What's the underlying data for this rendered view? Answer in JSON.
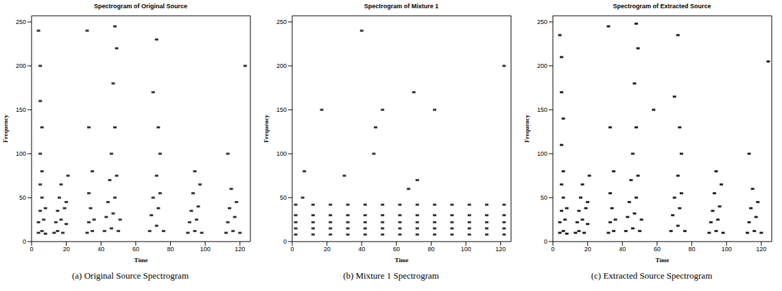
{
  "chart_data": [
    {
      "type": "scatter",
      "title": "Spectrogram of Original Source",
      "x_label": "Time",
      "y_label": "Frequency",
      "caption": "(a) Original Source Spectrogram",
      "xlim": [
        0,
        126
      ],
      "ylim": [
        0,
        257
      ],
      "xticks": [
        0,
        20,
        40,
        60,
        80,
        100,
        120
      ],
      "yticks": [
        0,
        50,
        100,
        150,
        200,
        250
      ],
      "color": "#333333",
      "marker": "square",
      "x": [
        4,
        6,
        8,
        4,
        7,
        5,
        8,
        6,
        5,
        6,
        5,
        6,
        5,
        5,
        4,
        13,
        15,
        18,
        14,
        17,
        20,
        15,
        19,
        16,
        20,
        17,
        21,
        32,
        35,
        33,
        36,
        34,
        33,
        35,
        33,
        32,
        42,
        46,
        50,
        43,
        47,
        51,
        44,
        48,
        45,
        49,
        46,
        48,
        47,
        49,
        48,
        68,
        72,
        76,
        69,
        73,
        70,
        74,
        72,
        74,
        73,
        70,
        72,
        90,
        94,
        98,
        91,
        95,
        92,
        96,
        93,
        97,
        94,
        112,
        116,
        120,
        113,
        117,
        114,
        118,
        115,
        113,
        123
      ],
      "values": [
        10,
        12,
        9,
        22,
        25,
        35,
        38,
        50,
        65,
        80,
        100,
        130,
        160,
        200,
        240,
        10,
        12,
        10,
        22,
        25,
        20,
        35,
        38,
        50,
        45,
        65,
        75,
        10,
        12,
        22,
        25,
        38,
        55,
        80,
        130,
        240,
        12,
        15,
        12,
        28,
        32,
        25,
        45,
        50,
        70,
        75,
        100,
        130,
        180,
        220,
        245,
        12,
        18,
        12,
        30,
        38,
        50,
        55,
        75,
        100,
        130,
        170,
        230,
        10,
        12,
        10,
        22,
        25,
        35,
        40,
        55,
        65,
        80,
        10,
        12,
        10,
        22,
        28,
        38,
        45,
        60,
        100,
        200
      ]
    },
    {
      "type": "scatter",
      "title": "Spectrogram of Mixture 1",
      "x_label": "Time",
      "y_label": "Frequency",
      "caption": "(b) Mixture 1 Spectrogram",
      "xlim": [
        0,
        126
      ],
      "ylim": [
        0,
        257
      ],
      "xticks": [
        0,
        20,
        40,
        60,
        80,
        100,
        120
      ],
      "yticks": [
        0,
        50,
        100,
        150,
        200,
        250
      ],
      "color": "#333333",
      "marker": "square",
      "x": [
        2,
        12,
        22,
        32,
        42,
        52,
        62,
        72,
        82,
        92,
        102,
        112,
        122,
        2,
        12,
        22,
        32,
        42,
        52,
        62,
        72,
        82,
        92,
        102,
        112,
        122,
        2,
        12,
        22,
        32,
        42,
        52,
        62,
        72,
        82,
        92,
        102,
        112,
        122,
        2,
        12,
        22,
        32,
        42,
        52,
        62,
        72,
        82,
        92,
        102,
        112,
        122,
        2,
        12,
        22,
        32,
        42,
        52,
        62,
        72,
        82,
        92,
        102,
        112,
        122,
        6,
        7,
        47,
        48,
        72,
        17,
        52,
        82,
        70,
        122,
        40,
        67,
        30
      ],
      "values": [
        8,
        8,
        8,
        8,
        8,
        8,
        8,
        8,
        8,
        8,
        8,
        8,
        8,
        15,
        15,
        15,
        15,
        15,
        15,
        15,
        15,
        15,
        15,
        15,
        15,
        15,
        22,
        22,
        22,
        22,
        22,
        22,
        22,
        22,
        22,
        22,
        22,
        22,
        22,
        30,
        30,
        30,
        30,
        30,
        30,
        30,
        30,
        30,
        30,
        30,
        30,
        30,
        42,
        42,
        42,
        42,
        42,
        42,
        42,
        42,
        42,
        42,
        42,
        42,
        42,
        50,
        80,
        100,
        130,
        70,
        150,
        150,
        150,
        170,
        200,
        240,
        60,
        75
      ]
    },
    {
      "type": "scatter",
      "title": "Spectrogram of Extracted Source",
      "x_label": "Time",
      "y_label": "Frequency",
      "caption": "(c) Extracted Source Spectrogram",
      "xlim": [
        0,
        126
      ],
      "ylim": [
        0,
        257
      ],
      "xticks": [
        0,
        20,
        40,
        60,
        80,
        100,
        120
      ],
      "yticks": [
        0,
        50,
        100,
        150,
        200,
        250
      ],
      "color": "#222222",
      "marker": "square",
      "x": [
        4,
        6,
        8,
        4,
        7,
        5,
        8,
        6,
        5,
        6,
        5,
        6,
        5,
        5,
        4,
        13,
        15,
        18,
        14,
        17,
        20,
        15,
        19,
        16,
        20,
        17,
        21,
        32,
        35,
        33,
        36,
        34,
        33,
        35,
        33,
        32,
        42,
        46,
        50,
        43,
        47,
        51,
        44,
        48,
        45,
        49,
        46,
        48,
        47,
        49,
        48,
        68,
        72,
        76,
        69,
        73,
        70,
        74,
        72,
        74,
        73,
        70,
        72,
        90,
        94,
        98,
        91,
        95,
        92,
        96,
        93,
        97,
        94,
        112,
        116,
        120,
        113,
        117,
        114,
        118,
        115,
        113,
        124,
        58
      ],
      "values": [
        10,
        12,
        9,
        22,
        25,
        35,
        38,
        50,
        65,
        80,
        110,
        140,
        170,
        210,
        235,
        10,
        12,
        10,
        22,
        25,
        20,
        35,
        38,
        50,
        45,
        65,
        75,
        10,
        12,
        22,
        25,
        38,
        55,
        80,
        130,
        245,
        12,
        15,
        12,
        28,
        32,
        25,
        45,
        50,
        70,
        75,
        100,
        130,
        180,
        220,
        248,
        12,
        18,
        12,
        30,
        38,
        50,
        55,
        75,
        100,
        130,
        165,
        235,
        10,
        12,
        10,
        22,
        25,
        35,
        40,
        55,
        65,
        80,
        10,
        12,
        10,
        22,
        28,
        38,
        45,
        60,
        100,
        205,
        150
      ]
    }
  ]
}
